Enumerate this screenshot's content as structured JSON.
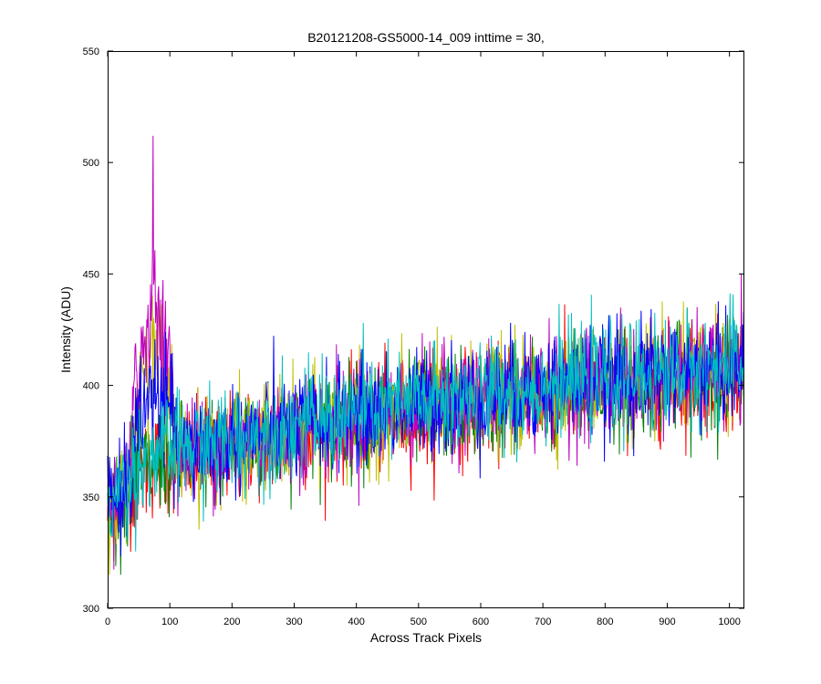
{
  "chart_data": {
    "type": "line",
    "title": "B20121208-GS5000-14_009 inttime = 30,",
    "xlabel": "Across Track Pixels",
    "ylabel": "Intensity (ADU)",
    "xlim": [
      0,
      1024
    ],
    "ylim": [
      300,
      550
    ],
    "xticks": [
      0,
      100,
      200,
      300,
      400,
      500,
      600,
      700,
      800,
      900,
      1000
    ],
    "yticks": [
      300,
      350,
      400,
      450,
      500,
      550
    ],
    "grid": false,
    "legend": "none",
    "series_colors": [
      "#ff0000",
      "#008000",
      "#bfbf00",
      "#bf00bf",
      "#0000ff",
      "#00bfbf"
    ],
    "series_profile": {
      "description_points": "approximate mean intensity along track for all traces",
      "x": [
        0,
        10,
        20,
        30,
        40,
        50,
        60,
        70,
        80,
        90,
        100,
        120,
        150,
        200,
        300,
        400,
        500,
        600,
        700,
        800,
        900,
        1000,
        1023
      ],
      "mean": [
        345,
        348,
        352,
        356,
        360,
        362,
        364,
        366,
        367,
        368,
        369,
        370,
        371,
        374,
        380,
        386,
        390,
        394,
        398,
        401,
        404,
        406,
        407
      ],
      "noise_sd": 12
    },
    "peak_region": {
      "x_range": [
        40,
        105
      ],
      "peak_values": {
        "magenta": 512,
        "yellow": 466,
        "blue": 420
      }
    }
  }
}
